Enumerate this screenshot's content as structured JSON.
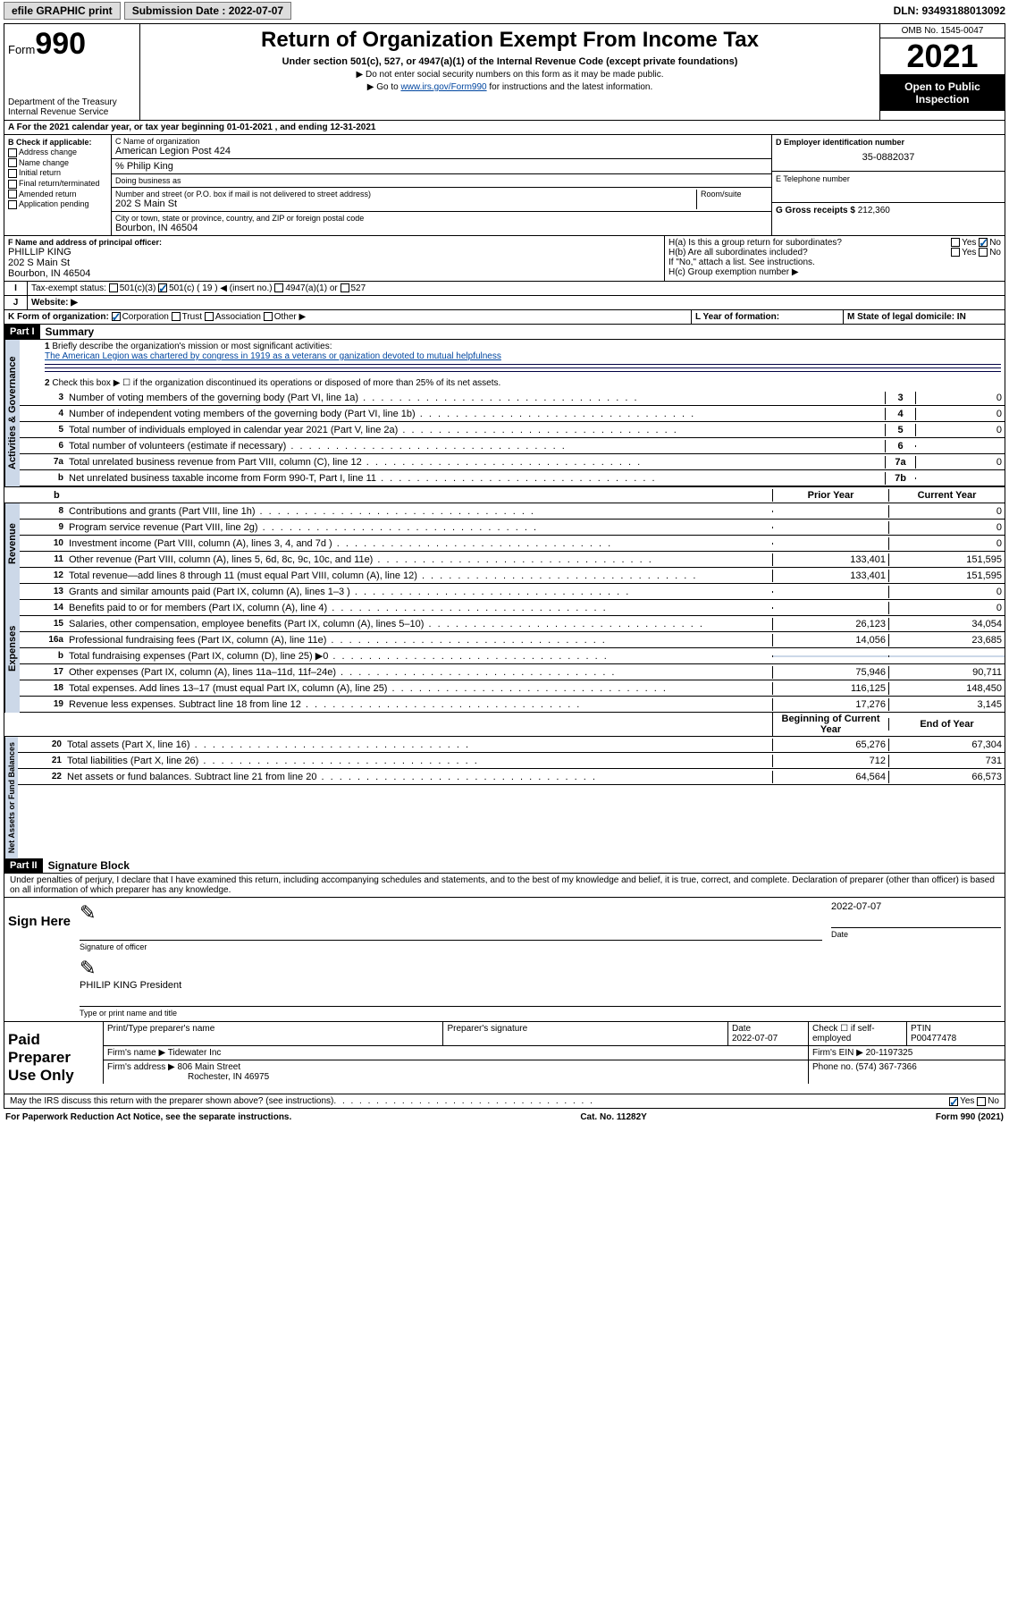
{
  "topbar": {
    "efile": "efile GRAPHIC print",
    "sub_label": "Submission Date : 2022-07-07",
    "dln": "DLN: 93493188013092"
  },
  "header": {
    "form_prefix": "Form",
    "form_num": "990",
    "dept": "Department of the Treasury\nInternal Revenue Service",
    "title": "Return of Organization Exempt From Income Tax",
    "sub": "Under section 501(c), 527, or 4947(a)(1) of the Internal Revenue Code (except private foundations)",
    "note1": "▶ Do not enter social security numbers on this form as it may be made public.",
    "note2_pre": "▶ Go to ",
    "note2_link": "www.irs.gov/Form990",
    "note2_post": " for instructions and the latest information.",
    "omb": "OMB No. 1545-0047",
    "year": "2021",
    "open": "Open to Public Inspection"
  },
  "A": {
    "text": "For the 2021 calendar year, or tax year beginning 01-01-2021   , and ending 12-31-2021"
  },
  "B": {
    "label": "B Check if applicable:",
    "items": [
      "Address change",
      "Name change",
      "Initial return",
      "Final return/terminated",
      "Amended return",
      "Application pending"
    ]
  },
  "C": {
    "name_lbl": "C Name of organization",
    "name": "American Legion Post 424",
    "care": "% Philip King",
    "dba_lbl": "Doing business as",
    "street_lbl": "Number and street (or P.O. box if mail is not delivered to street address)",
    "room_lbl": "Room/suite",
    "street": "202 S Main St",
    "city_lbl": "City or town, state or province, country, and ZIP or foreign postal code",
    "city": "Bourbon, IN  46504"
  },
  "D": {
    "lbl": "D Employer identification number",
    "val": "35-0882037"
  },
  "E": {
    "lbl": "E Telephone number",
    "val": ""
  },
  "G": {
    "lbl": "G Gross receipts $",
    "val": "212,360"
  },
  "F": {
    "lbl": "F  Name and address of principal officer:",
    "name": "PHILLIP KING",
    "addr1": "202 S Main St",
    "addr2": "Bourbon, IN  46504"
  },
  "H": {
    "a": "H(a)  Is this a group return for subordinates?",
    "b": "H(b)  Are all subordinates included?",
    "b2": "If \"No,\" attach a list. See instructions.",
    "c": "H(c)  Group exemption number ▶"
  },
  "I": {
    "lbl": "Tax-exempt status:",
    "opt1": "501(c)(3)",
    "opt2a": "501(c) ( 19 ) ◀ (insert no.)",
    "opt3": "4947(a)(1) or",
    "opt4": "527"
  },
  "J": {
    "lbl": "Website: ▶",
    "val": ""
  },
  "K": {
    "lbl": "K Form of organization:",
    "opts": [
      "Corporation",
      "Trust",
      "Association",
      "Other ▶"
    ],
    "L": "L Year of formation:",
    "M": "M State of legal domicile: IN"
  },
  "part1": {
    "title": "Part I",
    "subtitle": "Summary",
    "l1a": "Briefly describe the organization's mission or most significant activities:",
    "l1b": "The American Legion was chartered by congress in 1919 as a veterans or ganization devoted to mutual helpfulness",
    "l2": "Check this box ▶ ☐  if the organization discontinued its operations or disposed of more than 25% of its net assets.",
    "lines_single": [
      {
        "n": "3",
        "t": "Number of voting members of the governing body (Part VI, line 1a)",
        "box": "3",
        "v": "0"
      },
      {
        "n": "4",
        "t": "Number of independent voting members of the governing body (Part VI, line 1b)",
        "box": "4",
        "v": "0"
      },
      {
        "n": "5",
        "t": "Total number of individuals employed in calendar year 2021 (Part V, line 2a)",
        "box": "5",
        "v": "0"
      },
      {
        "n": "6",
        "t": "Total number of volunteers (estimate if necessary)",
        "box": "6",
        "v": ""
      },
      {
        "n": "7a",
        "t": "Total unrelated business revenue from Part VIII, column (C), line 12",
        "box": "7a",
        "v": "0"
      },
      {
        "n": "b",
        "t": "Net unrelated business taxable income from Form 990-T, Part I, line 11",
        "box": "7b",
        "v": ""
      }
    ],
    "colhdr1": "Prior Year",
    "colhdr2": "Current Year",
    "rev": [
      {
        "n": "8",
        "t": "Contributions and grants (Part VIII, line 1h)",
        "p": "",
        "c": "0"
      },
      {
        "n": "9",
        "t": "Program service revenue (Part VIII, line 2g)",
        "p": "",
        "c": "0"
      },
      {
        "n": "10",
        "t": "Investment income (Part VIII, column (A), lines 3, 4, and 7d )",
        "p": "",
        "c": "0"
      },
      {
        "n": "11",
        "t": "Other revenue (Part VIII, column (A), lines 5, 6d, 8c, 9c, 10c, and 11e)",
        "p": "133,401",
        "c": "151,595"
      },
      {
        "n": "12",
        "t": "Total revenue—add lines 8 through 11 (must equal Part VIII, column (A), line 12)",
        "p": "133,401",
        "c": "151,595"
      }
    ],
    "exp": [
      {
        "n": "13",
        "t": "Grants and similar amounts paid (Part IX, column (A), lines 1–3 )",
        "p": "",
        "c": "0"
      },
      {
        "n": "14",
        "t": "Benefits paid to or for members (Part IX, column (A), line 4)",
        "p": "",
        "c": "0"
      },
      {
        "n": "15",
        "t": "Salaries, other compensation, employee benefits (Part IX, column (A), lines 5–10)",
        "p": "26,123",
        "c": "34,054"
      },
      {
        "n": "16a",
        "t": "Professional fundraising fees (Part IX, column (A), line 11e)",
        "p": "14,056",
        "c": "23,685"
      },
      {
        "n": "b",
        "t": "Total fundraising expenses (Part IX, column (D), line 25) ▶0",
        "p": "—shade—",
        "c": "—shade—"
      },
      {
        "n": "17",
        "t": "Other expenses (Part IX, column (A), lines 11a–11d, 11f–24e)",
        "p": "75,946",
        "c": "90,711"
      },
      {
        "n": "18",
        "t": "Total expenses. Add lines 13–17 (must equal Part IX, column (A), line 25)",
        "p": "116,125",
        "c": "148,450"
      },
      {
        "n": "19",
        "t": "Revenue less expenses. Subtract line 18 from line 12",
        "p": "17,276",
        "c": "3,145"
      }
    ],
    "colhdr3": "Beginning of Current Year",
    "colhdr4": "End of Year",
    "net": [
      {
        "n": "20",
        "t": "Total assets (Part X, line 16)",
        "p": "65,276",
        "c": "67,304"
      },
      {
        "n": "21",
        "t": "Total liabilities (Part X, line 26)",
        "p": "712",
        "c": "731"
      },
      {
        "n": "22",
        "t": "Net assets or fund balances. Subtract line 21 from line 20",
        "p": "64,564",
        "c": "66,573"
      }
    ],
    "tabs": {
      "act": "Activities & Governance",
      "rev": "Revenue",
      "exp": "Expenses",
      "net": "Net Assets or Fund Balances"
    }
  },
  "part2": {
    "title": "Part II",
    "subtitle": "Signature Block",
    "decl": "Under penalties of perjury, I declare that I have examined this return, including accompanying schedules and statements, and to the best of my knowledge and belief, it is true, correct, and complete. Declaration of preparer (other than officer) is based on all information of which preparer has any knowledge.",
    "sign_here": "Sign Here",
    "sig_officer": "Signature of officer",
    "date": "Date",
    "date_val": "2022-07-07",
    "name_title": "PHILIP KING  President",
    "name_title_lbl": "Type or print name and title",
    "paid": "Paid Preparer Use Only",
    "prep_name_lbl": "Print/Type preparer's name",
    "prep_sig_lbl": "Preparer's signature",
    "prep_date": "2022-07-07",
    "self_emp": "Check ☐ if self-employed",
    "ptin_lbl": "PTIN",
    "ptin": "P00477478",
    "firm_name_lbl": "Firm's name    ▶",
    "firm_name": "Tidewater Inc",
    "firm_ein_lbl": "Firm's EIN ▶",
    "firm_ein": "20-1197325",
    "firm_addr_lbl": "Firm's address ▶",
    "firm_addr1": "806 Main Street",
    "firm_addr2": "Rochester, IN  46975",
    "phone_lbl": "Phone no.",
    "phone": "(574) 367-7366",
    "may": "May the IRS discuss this return with the preparer shown above? (see instructions)",
    "yes": "Yes",
    "no": "No"
  },
  "footer": {
    "pra": "For Paperwork Reduction Act Notice, see the separate instructions.",
    "cat": "Cat. No. 11282Y",
    "form": "Form 990 (2021)"
  }
}
